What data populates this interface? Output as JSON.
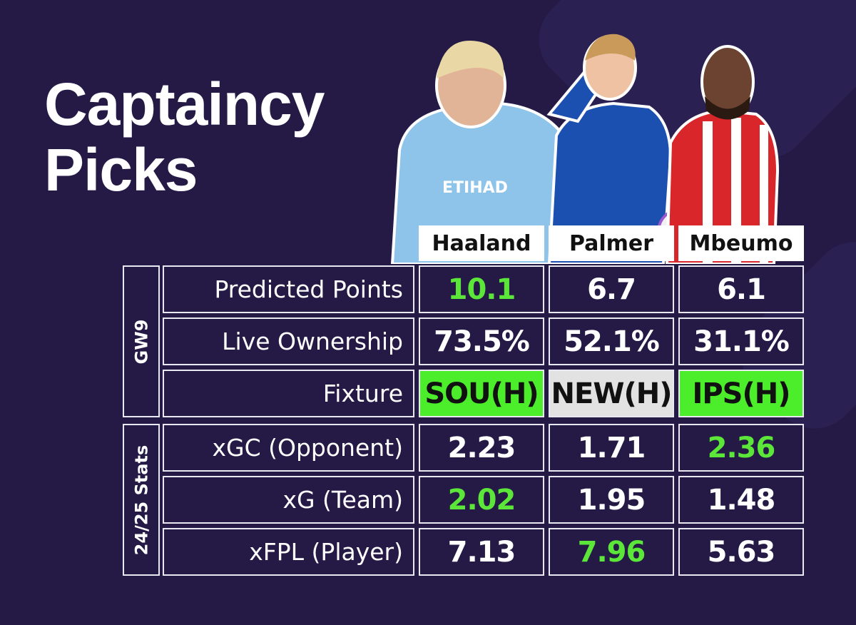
{
  "title": "Captaincy Picks",
  "players": [
    "Haaland",
    "Palmer",
    "Mbeumo"
  ],
  "groups": [
    {
      "label": "GW9",
      "rows": [
        {
          "label": "Predicted Points",
          "cells": [
            {
              "text": "10.1",
              "color": "#5ce63a"
            },
            {
              "text": "6.7"
            },
            {
              "text": "6.1"
            }
          ]
        },
        {
          "label": "Live Ownership",
          "cells": [
            {
              "text": "73.5%"
            },
            {
              "text": "52.1%"
            },
            {
              "text": "31.1%"
            }
          ]
        },
        {
          "label": "Fixture",
          "cells": [
            {
              "text": "SOU(H)",
              "color": "#111111",
              "background": "#4cee2c"
            },
            {
              "text": "NEW(H)",
              "color": "#111111",
              "background": "#e2e2e2"
            },
            {
              "text": "IPS(H)",
              "color": "#111111",
              "background": "#4cee2c"
            }
          ]
        }
      ]
    },
    {
      "label": "24/25 Stats",
      "rows": [
        {
          "label": "xGC (Opponent)",
          "cells": [
            {
              "text": "2.23"
            },
            {
              "text": "1.71"
            },
            {
              "text": "2.36",
              "color": "#5ce63a"
            }
          ]
        },
        {
          "label": "xG (Team)",
          "cells": [
            {
              "text": "2.02",
              "color": "#5ce63a"
            },
            {
              "text": "1.95"
            },
            {
              "text": "1.48"
            }
          ]
        },
        {
          "label": "xFPL (Player)",
          "cells": [
            {
              "text": "7.13"
            },
            {
              "text": "7.96",
              "color": "#5ce63a"
            },
            {
              "text": "5.63"
            }
          ]
        }
      ]
    }
  ]
}
